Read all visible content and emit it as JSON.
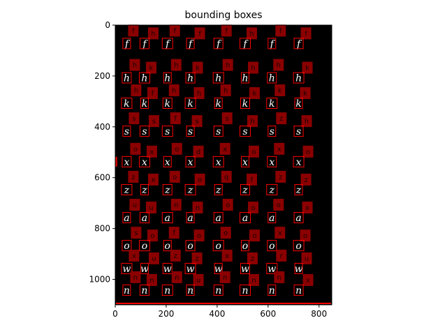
{
  "chart_data": {
    "type": "image",
    "title": "bounding boxes",
    "xlabel": "",
    "ylabel": "",
    "xlim": [
      0,
      850
    ],
    "ylim": [
      1100,
      0
    ],
    "x_ticks": [
      "0",
      "200",
      "400",
      "600",
      "800"
    ],
    "x_tick_values": [
      0,
      200,
      400,
      600,
      800
    ],
    "y_ticks": [
      "0",
      "200",
      "400",
      "600",
      "800",
      "1000"
    ],
    "y_tick_values": [
      0,
      200,
      400,
      600,
      800,
      1000
    ],
    "background_color": "#000000",
    "box_color": "#ff0000",
    "label_fill_color": "#8b0000",
    "glyph_color": "#ffffff",
    "rows": [
      {
        "y": 75,
        "labels": [
          "f",
          "h",
          "f",
          "f",
          "f",
          "h",
          "f",
          "f"
        ],
        "glyphs": [
          "f",
          "f",
          "f",
          "f",
          "f",
          "f",
          "f",
          "f"
        ]
      },
      {
        "y": 210,
        "labels": [
          "h",
          "k",
          "h",
          "k",
          "h",
          "h",
          "h",
          "k"
        ],
        "glyphs": [
          "h",
          "h",
          "h",
          "h",
          "h",
          "h",
          "h",
          "h"
        ]
      },
      {
        "y": 310,
        "labels": [
          "h",
          "f",
          "h",
          "h",
          "h",
          "k",
          "k",
          "k"
        ],
        "glyphs": [
          "k",
          "k",
          "k",
          "k",
          "k",
          "k",
          "k",
          "k"
        ]
      },
      {
        "y": 420,
        "labels": [
          "s",
          "s",
          "f",
          "s",
          "s",
          "h",
          "z",
          "h"
        ],
        "glyphs": [
          "s",
          "s",
          "s",
          "s",
          "s",
          "s",
          "s",
          "s"
        ]
      },
      {
        "y": 540,
        "labels": [
          "o",
          "x",
          "o",
          "d",
          "x",
          "o",
          "x",
          "o"
        ],
        "glyphs": [
          "x",
          "x",
          "x",
          "x",
          "x",
          "x",
          "x",
          "x"
        ]
      },
      {
        "y": 650,
        "labels": [
          "z",
          "x",
          "o",
          "o",
          "q",
          "f",
          "z",
          "z"
        ],
        "glyphs": [
          "z",
          "z",
          "z",
          "z",
          "z",
          "z",
          "z",
          "z"
        ]
      },
      {
        "y": 760,
        "labels": [
          "u",
          "u",
          "n",
          "n",
          "o",
          "o",
          "o",
          "x"
        ],
        "glyphs": [
          "a",
          "a",
          "a",
          "a",
          "a",
          "a",
          "a",
          "a"
        ]
      },
      {
        "y": 870,
        "labels": [
          "s",
          "o",
          "f",
          "o",
          "o",
          "o",
          "x",
          "o"
        ],
        "glyphs": [
          "o",
          "o",
          "o",
          "o",
          "o",
          "o",
          "o",
          "o"
        ]
      },
      {
        "y": 960,
        "labels": [
          "x",
          "u",
          "z",
          "z",
          "x",
          "z",
          "r",
          "u"
        ],
        "glyphs": [
          "w",
          "w",
          "w",
          "w",
          "w",
          "w",
          "w",
          "w"
        ]
      },
      {
        "y": 1045,
        "labels": [
          "n",
          "n",
          "n",
          "u",
          "n",
          "n",
          "n",
          "x"
        ],
        "glyphs": [
          "n",
          "n",
          "n",
          "n",
          "n",
          "n",
          "n",
          "n"
        ]
      }
    ],
    "columns_x": [
      45,
      115,
      205,
      295,
      405,
      510,
      615,
      720
    ]
  }
}
